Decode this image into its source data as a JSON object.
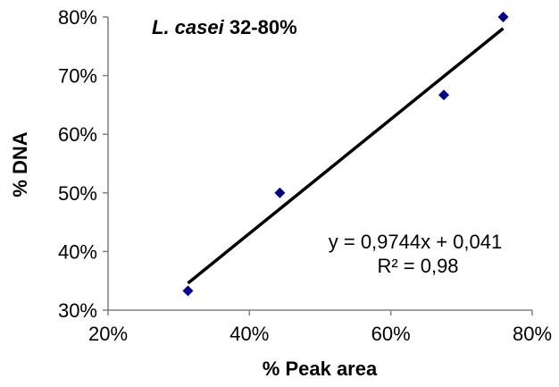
{
  "chart_data": {
    "type": "scatter",
    "title": "",
    "annotation": {
      "species": "L. casei",
      "range": " 32-80%"
    },
    "xlabel": "% Peak area",
    "ylabel": "% DNA",
    "xlim": [
      0.2,
      0.8
    ],
    "ylim": [
      0.3,
      0.8
    ],
    "x_ticks": [
      0.2,
      0.4,
      0.6,
      0.8
    ],
    "y_ticks": [
      0.3,
      0.4,
      0.5,
      0.6,
      0.7,
      0.8
    ],
    "x_tick_labels": [
      "20%",
      "40%",
      "60%",
      "80%"
    ],
    "y_tick_labels": [
      "30%",
      "40%",
      "50%",
      "60%",
      "70%",
      "80%"
    ],
    "grid": false,
    "series": [
      {
        "x": [
          0.313,
          0.443,
          0.675,
          0.759
        ],
        "y": [
          0.333,
          0.5,
          0.667,
          0.8
        ],
        "color": "#00008B",
        "marker": "diamond"
      }
    ],
    "trendline": {
      "slope": 0.9744,
      "intercept": 0.041,
      "x_range": [
        0.313,
        0.759
      ],
      "equation": "y = 0,9744x + 0,041",
      "r2": "R² = 0,98",
      "color": "#000000"
    }
  }
}
